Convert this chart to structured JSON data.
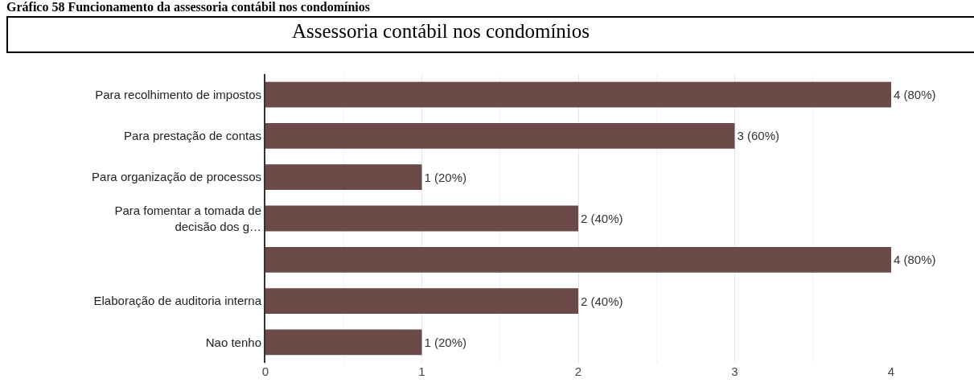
{
  "chart_data": {
    "type": "bar",
    "orientation": "horizontal",
    "title": "Assessoria contábil nos condomínios",
    "annotations": [
      "Gráfico 58 Funcionamento da assessoria contábil nos condomínios"
    ],
    "categories": [
      "Para recolhimento de impostos",
      "Para prestação de contas",
      "Para organização de processos",
      "Para fomentar a tomada de\ndecisão dos g…",
      null,
      "Elaboração de auditoria interna",
      "Nao tenho"
    ],
    "values": [
      4,
      3,
      1,
      2,
      4,
      2,
      1
    ],
    "value_labels": [
      "4 (80%)",
      "3 (60%)",
      "1 (20%)",
      "2 (40%)",
      "4 (80%)",
      "2 (40%)",
      "1 (20%)"
    ],
    "color": "#6b4a47",
    "xlim": [
      0,
      4
    ],
    "xticks": [
      0,
      1,
      2,
      3,
      4
    ],
    "grid": "x"
  }
}
